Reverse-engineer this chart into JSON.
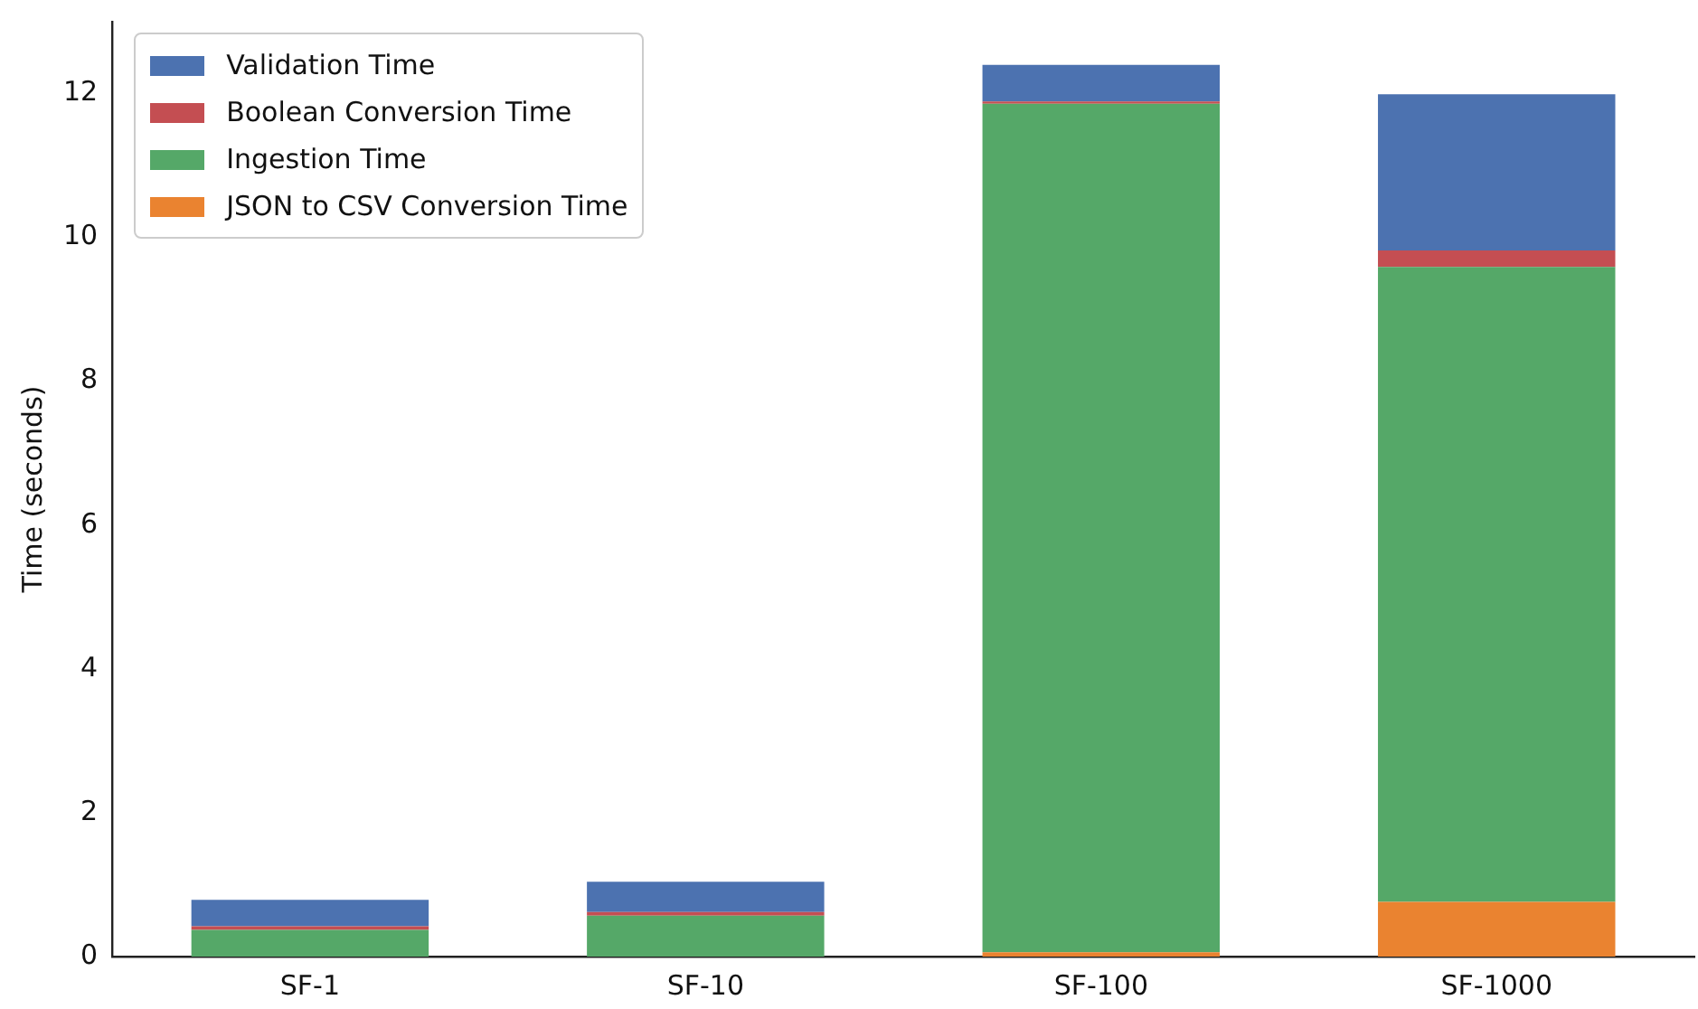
{
  "chart_data": {
    "type": "bar",
    "stacked": true,
    "ylabel": "Time (seconds)",
    "categories": [
      "SF-1",
      "SF-10",
      "SF-100",
      "SF-1000"
    ],
    "series": [
      {
        "name": "JSON to CSV Conversion Time",
        "color": "#ea8330",
        "values": [
          0,
          0,
          0.06,
          0.76
        ]
      },
      {
        "name": "Ingestion Time",
        "color": "#55a868",
        "values": [
          0.37,
          0.57,
          11.8,
          8.83
        ]
      },
      {
        "name": "Boolean Conversion Time",
        "color": "#c44e52",
        "values": [
          0.05,
          0.05,
          0.03,
          0.23
        ]
      },
      {
        "name": "Validation Time",
        "color": "#4c72b0",
        "values": [
          0.37,
          0.42,
          0.51,
          2.17
        ]
      }
    ],
    "ylim": [
      0,
      13
    ],
    "yticks": [
      0,
      2,
      4,
      6,
      8,
      10,
      12
    ],
    "grid": false,
    "legend": "top left"
  }
}
